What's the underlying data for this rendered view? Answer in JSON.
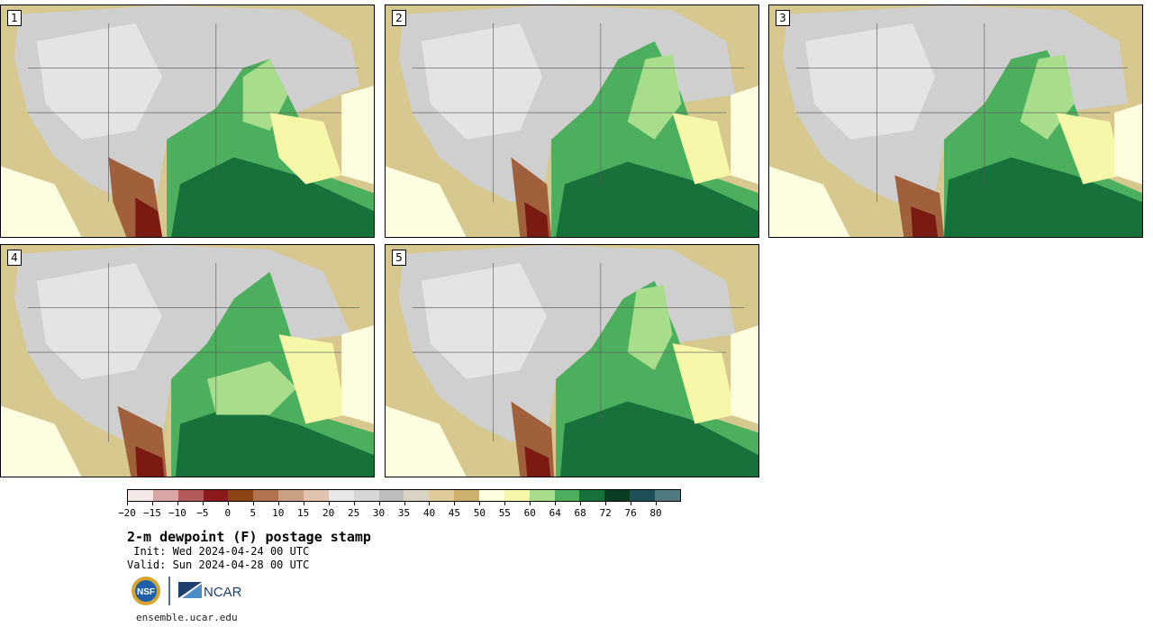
{
  "panels": [
    {
      "label": "1"
    },
    {
      "label": "2"
    },
    {
      "label": "3"
    },
    {
      "label": "4"
    },
    {
      "label": "5"
    }
  ],
  "colorbar": {
    "colors": [
      "#f5e9e8",
      "#d9a6a6",
      "#b35b5b",
      "#8b1a1a",
      "#8c4513",
      "#b07350",
      "#c9a083",
      "#e0c4b0",
      "#e8e8e8",
      "#d6d6d6",
      "#bdbdbd",
      "#d9d4c5",
      "#e0cc9a",
      "#cdb06b",
      "#fdfde0",
      "#f7f7a9",
      "#a8dd8c",
      "#4caf5e",
      "#16723a",
      "#0b3d22",
      "#1f4f59",
      "#4e7a80"
    ],
    "labels": [
      "−20",
      "−15",
      "−10",
      "−5",
      "0",
      "5",
      "10",
      "15",
      "20",
      "25",
      "30",
      "35",
      "40",
      "45",
      "50",
      "55",
      "60",
      "64",
      "68",
      "72",
      "76",
      "80"
    ]
  },
  "title": "2-m dewpoint (F) postage stamp",
  "init": " Init: Wed 2024-04-24 00 UTC",
  "valid": "Valid: Sun 2024-04-28 00 UTC",
  "logos": {
    "nsf": "NSF",
    "ncar": "NCAR"
  },
  "site": "ensemble.ucar.edu"
}
